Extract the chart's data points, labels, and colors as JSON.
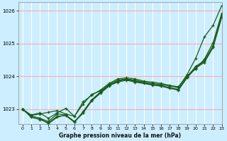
{
  "title": "Graphe pression niveau de la mer (hPa)",
  "background_color": "#cceeff",
  "grid_color_h": "#ffaaaa",
  "grid_color_v": "#ffffff",
  "line_color": "#1a5c1a",
  "xlim": [
    -0.5,
    23
  ],
  "ylim": [
    1022.55,
    1026.25
  ],
  "yticks": [
    1023,
    1024,
    1025,
    1026
  ],
  "xticks": [
    0,
    1,
    2,
    3,
    4,
    5,
    6,
    7,
    8,
    9,
    10,
    11,
    12,
    13,
    14,
    15,
    16,
    17,
    18,
    19,
    20,
    21,
    22,
    23
  ],
  "series": [
    [
      1023.0,
      1022.8,
      1022.85,
      1022.9,
      1022.95,
      1022.85,
      1022.78,
      1023.15,
      1023.45,
      1023.55,
      1023.75,
      1023.88,
      1023.92,
      1023.88,
      1023.82,
      1023.78,
      1023.75,
      1023.7,
      1023.65,
      1024.05,
      1024.55,
      1025.2,
      1025.55,
      1026.15
    ],
    [
      1023.0,
      1022.82,
      1022.88,
      1022.72,
      1022.88,
      1023.02,
      1022.78,
      1023.22,
      1023.42,
      1023.58,
      1023.78,
      1023.92,
      1023.95,
      1023.92,
      1023.85,
      1023.82,
      1023.78,
      1023.72,
      1023.68,
      1024.02,
      1024.22,
      1024.52,
      1025.02,
      1025.92
    ],
    [
      1023.0,
      1022.78,
      1022.72,
      1022.62,
      1022.85,
      1022.82,
      1022.6,
      1022.88,
      1023.28,
      1023.52,
      1023.72,
      1023.85,
      1023.92,
      1023.85,
      1023.8,
      1023.75,
      1023.72,
      1023.65,
      1023.6,
      1023.98,
      1024.3,
      1024.48,
      1024.92,
      1025.88
    ],
    [
      1023.0,
      1022.78,
      1022.72,
      1022.55,
      1022.75,
      1022.82,
      1022.62,
      1022.88,
      1023.25,
      1023.48,
      1023.7,
      1023.85,
      1023.9,
      1023.85,
      1023.8,
      1023.75,
      1023.7,
      1023.65,
      1023.58,
      1023.95,
      1024.25,
      1024.42,
      1024.88,
      1025.82
    ],
    [
      1023.0,
      1022.75,
      1022.68,
      1022.58,
      1022.78,
      1022.8,
      1022.6,
      1022.92,
      1023.28,
      1023.5,
      1023.72,
      1023.82,
      1023.88,
      1023.82,
      1023.78,
      1023.73,
      1023.7,
      1023.63,
      1023.58,
      1023.98,
      1024.28,
      1024.45,
      1024.88,
      1025.8
    ]
  ]
}
